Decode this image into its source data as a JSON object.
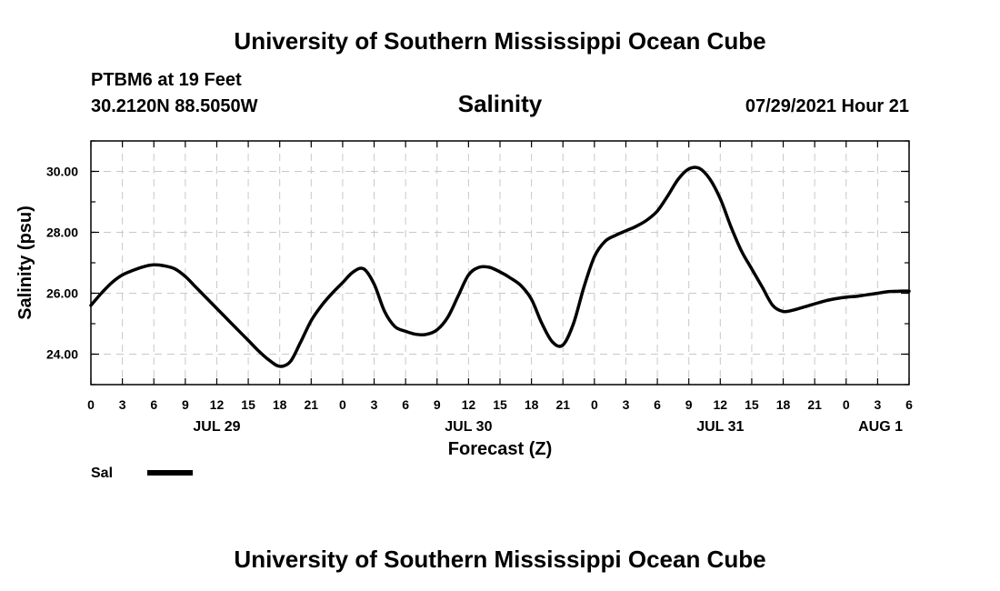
{
  "header": {
    "title": "University of Southern Mississippi Ocean Cube",
    "station": "PTBM6 at 19 Feet",
    "coords": "30.2120N  88.5050W",
    "datetime": "07/29/2021 Hour 21"
  },
  "footer": {
    "title": "University of Southern Mississippi Ocean Cube"
  },
  "chart_data": {
    "type": "line",
    "title": "Salinity",
    "xlabel": "Forecast (Z)",
    "ylabel": "Salinity (psu)",
    "ylim": [
      23.0,
      31.0
    ],
    "yticks": [
      "24.00",
      "26.00",
      "28.00",
      "30.00"
    ],
    "x_range_hours": [
      0,
      78
    ],
    "x_tick_labels": [
      "0",
      "3",
      "6",
      "9",
      "12",
      "15",
      "18",
      "21",
      "0",
      "3",
      "6",
      "9",
      "12",
      "15",
      "18",
      "21",
      "0",
      "3",
      "6",
      "9",
      "12",
      "15",
      "18",
      "21",
      "0",
      "3",
      "6"
    ],
    "day_labels": [
      {
        "label": "JUL 29",
        "hour": 12
      },
      {
        "label": "JUL 30",
        "hour": 36
      },
      {
        "label": "JUL 31",
        "hour": 60
      },
      {
        "label": "AUG 1",
        "hour": 78
      }
    ],
    "grid": true,
    "series": [
      {
        "name": "Sal",
        "color": "#000000",
        "x": [
          0,
          1,
          2,
          3,
          4,
          5,
          6,
          7,
          8,
          9,
          10,
          11,
          12,
          13,
          14,
          15,
          16,
          17,
          18,
          19,
          20,
          21,
          22,
          23,
          24,
          25,
          26,
          27,
          28,
          29,
          30,
          31,
          32,
          33,
          34,
          35,
          36,
          37,
          38,
          39,
          40,
          41,
          42,
          43,
          44,
          45,
          46,
          47,
          48,
          49,
          50,
          51,
          52,
          53,
          54,
          55,
          56,
          57,
          58,
          59,
          60,
          61,
          62,
          63,
          64,
          65,
          66,
          67,
          68,
          69,
          70,
          71,
          72,
          73,
          74,
          75,
          76,
          77,
          78
        ],
        "values": [
          25.6,
          26.0,
          26.35,
          26.6,
          26.75,
          26.87,
          26.93,
          26.9,
          26.8,
          26.55,
          26.2,
          25.85,
          25.5,
          25.15,
          24.8,
          24.45,
          24.1,
          23.8,
          23.6,
          23.75,
          24.4,
          25.1,
          25.6,
          26.0,
          26.35,
          26.7,
          26.8,
          26.3,
          25.4,
          24.9,
          24.75,
          24.65,
          24.65,
          24.8,
          25.2,
          25.9,
          26.6,
          26.85,
          26.85,
          26.7,
          26.5,
          26.25,
          25.8,
          25.0,
          24.4,
          24.3,
          25.0,
          26.2,
          27.2,
          27.7,
          27.9,
          28.05,
          28.2,
          28.4,
          28.7,
          29.2,
          29.75,
          30.08,
          30.1,
          29.75,
          29.1,
          28.2,
          27.4,
          26.8,
          26.2,
          25.6,
          25.4,
          25.45,
          25.55,
          25.65,
          25.75,
          25.82,
          25.87,
          25.9,
          25.95,
          26.0,
          26.05,
          26.07,
          26.07
        ]
      }
    ]
  }
}
